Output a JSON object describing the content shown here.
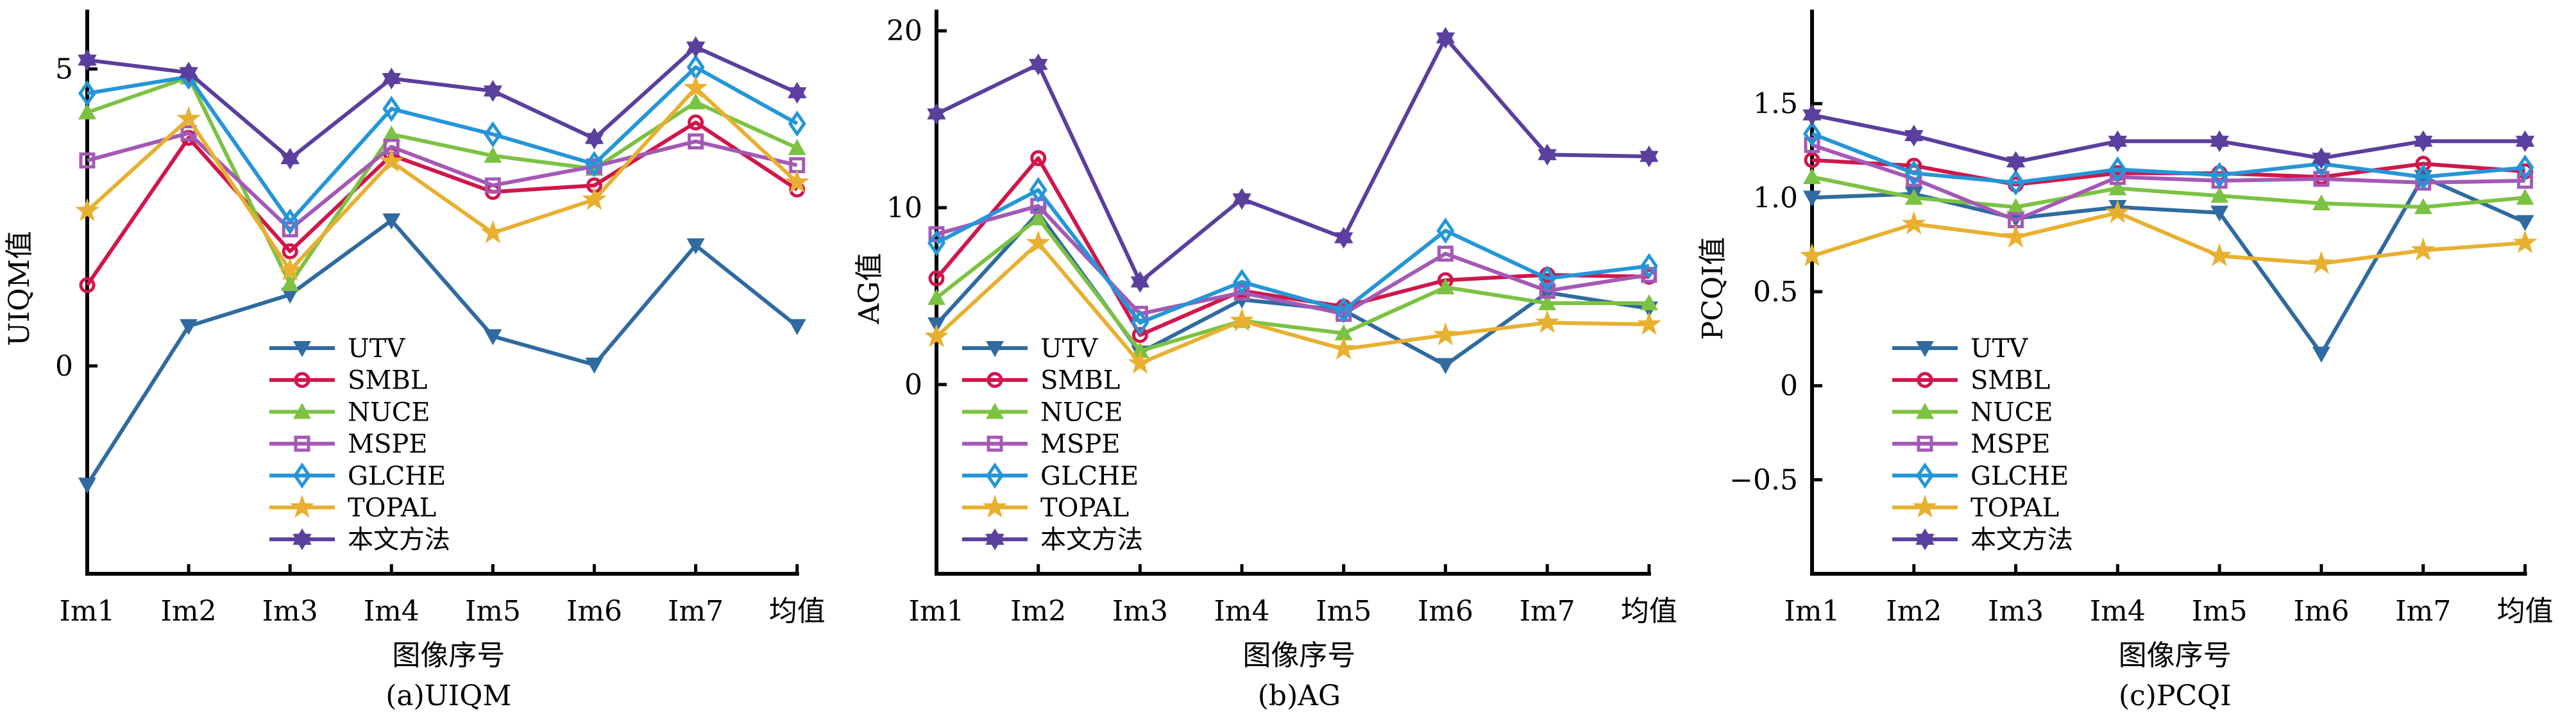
{
  "figure": {
    "series_styles": [
      {
        "name": "UTV",
        "color": "#2f6aa0",
        "marker": "triangle-down"
      },
      {
        "name": "SMBL",
        "color": "#d0164a",
        "marker": "circle"
      },
      {
        "name": "NUCE",
        "color": "#7cc242",
        "marker": "triangle-up"
      },
      {
        "name": "MSPE",
        "color": "#a459b5",
        "marker": "square"
      },
      {
        "name": "GLCHE",
        "color": "#2496d8",
        "marker": "diamond"
      },
      {
        "name": "TOPAL",
        "color": "#e8b030",
        "marker": "star5"
      },
      {
        "name": "本文方法",
        "color": "#5a3f9e",
        "marker": "star6"
      }
    ]
  },
  "chart_data": [
    {
      "type": "line",
      "title": "(a)UIQM",
      "xlabel": "图像序号",
      "ylabel": "UIQM值",
      "categories": [
        "Im1",
        "Im2",
        "Im3",
        "Im4",
        "Im5",
        "Im6",
        "Im7",
        "均值"
      ],
      "ylim": [
        -3.5,
        6.0
      ],
      "yticks": [
        {
          "value": 0,
          "label": "0"
        },
        {
          "value": 5,
          "label": "5"
        }
      ],
      "grid": false,
      "legend": "lower-center",
      "series": [
        {
          "name": "UTV",
          "values": [
            -2.0,
            0.67,
            1.2,
            2.45,
            0.5,
            0.02,
            2.03,
            0.67
          ]
        },
        {
          "name": "SMBL",
          "values": [
            1.36,
            3.84,
            1.93,
            3.55,
            2.93,
            3.04,
            4.1,
            2.97
          ]
        },
        {
          "name": "NUCE",
          "values": [
            4.27,
            4.86,
            1.38,
            3.9,
            3.54,
            3.32,
            4.44,
            3.67
          ]
        },
        {
          "name": "MSPE",
          "values": [
            3.46,
            3.92,
            2.3,
            3.69,
            3.04,
            3.36,
            3.78,
            3.38
          ]
        },
        {
          "name": "GLCHE",
          "values": [
            4.59,
            4.87,
            2.43,
            4.33,
            3.9,
            3.4,
            5.03,
            4.08
          ]
        },
        {
          "name": "TOPAL",
          "values": [
            2.61,
            4.16,
            1.61,
            3.44,
            2.24,
            2.8,
            4.68,
            3.09
          ]
        },
        {
          "name": "本文方法",
          "values": [
            5.15,
            4.94,
            3.49,
            4.84,
            4.63,
            3.83,
            5.37,
            4.6
          ]
        }
      ]
    },
    {
      "type": "line",
      "title": "(b)AG",
      "xlabel": "图像序号",
      "ylabel": "AG值",
      "categories": [
        "Im1",
        "Im2",
        "Im3",
        "Im4",
        "Im5",
        "Im6",
        "Im7",
        "均值"
      ],
      "ylim": [
        -10.7,
        21.2
      ],
      "yticks": [
        {
          "value": 0,
          "label": "0"
        },
        {
          "value": 10,
          "label": "10"
        },
        {
          "value": 20,
          "label": "20"
        }
      ],
      "grid": false,
      "legend": "lower-left",
      "series": [
        {
          "name": "UTV",
          "values": [
            3.4,
            9.7,
            1.8,
            4.8,
            4.2,
            1.1,
            5.2,
            4.3
          ]
        },
        {
          "name": "SMBL",
          "values": [
            6.0,
            12.8,
            2.8,
            5.3,
            4.4,
            5.9,
            6.2,
            6.1
          ]
        },
        {
          "name": "NUCE",
          "values": [
            4.9,
            9.4,
            1.9,
            3.6,
            2.9,
            5.5,
            4.6,
            4.6
          ]
        },
        {
          "name": "MSPE",
          "values": [
            8.5,
            10.1,
            4.0,
            5.2,
            4.0,
            7.4,
            5.3,
            6.2
          ]
        },
        {
          "name": "GLCHE",
          "values": [
            8.0,
            11.0,
            3.5,
            5.8,
            4.2,
            8.7,
            6.0,
            6.7
          ]
        },
        {
          "name": "TOPAL",
          "values": [
            2.7,
            8.0,
            1.2,
            3.6,
            2.0,
            2.8,
            3.5,
            3.4
          ]
        },
        {
          "name": "本文方法",
          "values": [
            15.3,
            18.1,
            5.8,
            10.5,
            8.3,
            19.6,
            13.0,
            12.9
          ]
        }
      ]
    },
    {
      "type": "line",
      "title": "(c)PCQI",
      "xlabel": "图像序号",
      "ylabel": "PCQI值",
      "categories": [
        "Im1",
        "Im2",
        "Im3",
        "Im4",
        "Im5",
        "Im6",
        "Im7",
        "均值"
      ],
      "ylim": [
        -1.0,
        2.0
      ],
      "yticks": [
        {
          "value": -0.5,
          "label": "−0.5"
        },
        {
          "value": 0,
          "label": "0"
        },
        {
          "value": 0.5,
          "label": "0.5"
        },
        {
          "value": 1.0,
          "label": "1.0"
        },
        {
          "value": 1.5,
          "label": "1.5"
        }
      ],
      "grid": false,
      "legend": "lower-left",
      "series": [
        {
          "name": "UTV",
          "values": [
            1.0,
            1.02,
            0.89,
            0.95,
            0.92,
            0.17,
            1.11,
            0.87
          ]
        },
        {
          "name": "SMBL",
          "values": [
            1.2,
            1.17,
            1.07,
            1.13,
            1.13,
            1.11,
            1.18,
            1.14
          ]
        },
        {
          "name": "NUCE",
          "values": [
            1.11,
            1.0,
            0.95,
            1.05,
            1.01,
            0.97,
            0.95,
            1.0
          ]
        },
        {
          "name": "MSPE",
          "values": [
            1.28,
            1.1,
            0.88,
            1.11,
            1.09,
            1.1,
            1.08,
            1.09
          ]
        },
        {
          "name": "GLCHE",
          "values": [
            1.34,
            1.13,
            1.08,
            1.15,
            1.12,
            1.18,
            1.11,
            1.16
          ]
        },
        {
          "name": "TOPAL",
          "values": [
            0.69,
            0.86,
            0.79,
            0.92,
            0.69,
            0.65,
            0.72,
            0.76
          ]
        },
        {
          "name": "本文方法",
          "values": [
            1.44,
            1.33,
            1.19,
            1.3,
            1.3,
            1.21,
            1.3,
            1.3
          ]
        }
      ]
    }
  ]
}
